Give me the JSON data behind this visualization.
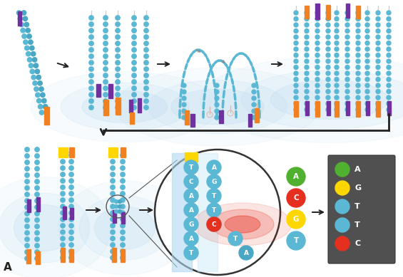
{
  "bg_color": "#ffffff",
  "light_blue": "#B8D8F0",
  "dot_blue": "#5BB8D4",
  "dot_blue2": "#4AA8C4",
  "orange": "#F08020",
  "purple": "#7030A0",
  "yellow": "#FFD700",
  "green": "#50B030",
  "red": "#E53020",
  "gray_bg": "#505050",
  "white": "#ffffff",
  "seq_left": [
    "T",
    "C",
    "A",
    "A",
    "G",
    "A",
    "T"
  ],
  "seq_right": [
    "A",
    "G",
    "T",
    "T",
    "C",
    "",
    ""
  ],
  "legend_items": [
    {
      "letter": "A",
      "color": "#50B030"
    },
    {
      "letter": "G",
      "color": "#FFD700"
    },
    {
      "letter": "T",
      "color": "#5BB8D4"
    },
    {
      "letter": "T",
      "color": "#5BB8D4"
    },
    {
      "letter": "C",
      "color": "#E53020"
    }
  ],
  "float_bases": [
    {
      "letter": "A",
      "color": "#50B030"
    },
    {
      "letter": "C",
      "color": "#E53020"
    },
    {
      "letter": "G",
      "color": "#FFD700"
    },
    {
      "letter": "T",
      "color": "#5BB8D4"
    }
  ]
}
